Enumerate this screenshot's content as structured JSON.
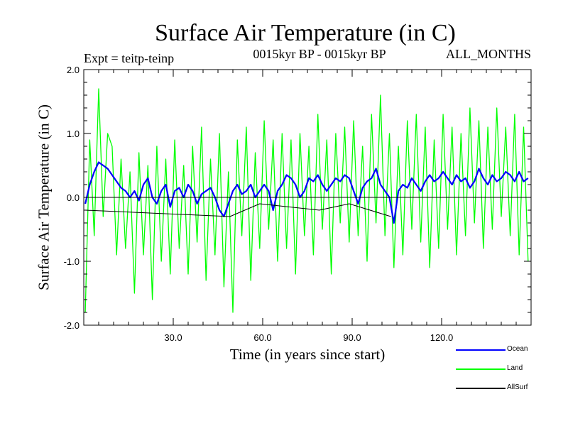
{
  "chart_data": {
    "type": "line",
    "title": "Surface Air Temperature (in C)",
    "subtitle_left": "Expt = teitp-teinp",
    "subtitle_center": "0015kyr BP - 0015kyr BP",
    "subtitle_right": "ALL_MONTHS",
    "xlabel": "Time (in years since start)",
    "ylabel": "Surface Air Temperature (in C)",
    "xlim": [
      0,
      150
    ],
    "ylim": [
      -2.0,
      2.0
    ],
    "x_ticks": [
      30,
      60,
      90,
      120
    ],
    "x_tick_labels": [
      "30.0",
      "60.0",
      "90.0",
      "120.0"
    ],
    "y_ticks": [
      -2.0,
      -1.0,
      0.0,
      1.0,
      2.0
    ],
    "y_tick_labels": [
      "-2.0",
      "-1.0",
      "0.0",
      "1.0",
      "2.0"
    ],
    "zero_line": 0.0,
    "legend_position": "bottom-right",
    "series": [
      {
        "name": "Land",
        "color": "#00ff00",
        "x": [
          0.5,
          2.0,
          3.5,
          5.0,
          6.5,
          8.0,
          9.5,
          11.0,
          12.5,
          14.0,
          15.5,
          17.0,
          18.5,
          20.0,
          21.5,
          23.0,
          24.5,
          26.0,
          27.5,
          29.0,
          30.5,
          32.0,
          33.5,
          35.0,
          36.5,
          38.0,
          39.5,
          41.0,
          42.5,
          44.0,
          45.5,
          47.0,
          48.5,
          50.0,
          51.5,
          53.0,
          54.5,
          56.0,
          57.5,
          59.0,
          60.5,
          62.0,
          63.5,
          65.0,
          66.5,
          68.0,
          69.5,
          71.0,
          72.5,
          74.0,
          75.5,
          77.0,
          78.5,
          80.0,
          81.5,
          83.0,
          84.5,
          86.0,
          87.5,
          89.0,
          90.5,
          92.0,
          93.5,
          95.0,
          96.5,
          98.0,
          99.5,
          101.0,
          102.5,
          104.0,
          105.5,
          107.0,
          108.5,
          110.0,
          111.5,
          113.0,
          114.5,
          116.0,
          117.5,
          119.0,
          120.5,
          122.0,
          123.5,
          125.0,
          126.5,
          128.0,
          129.5,
          131.0,
          132.5,
          134.0,
          135.5,
          137.0,
          138.5,
          140.0,
          141.5,
          143.0,
          144.5,
          146.0,
          147.5,
          149.0
        ],
        "values": [
          -1.8,
          0.9,
          -0.6,
          1.7,
          -0.3,
          1.0,
          0.8,
          -0.9,
          0.6,
          -0.8,
          0.4,
          -1.5,
          0.7,
          -0.9,
          0.5,
          -1.6,
          0.8,
          -1.0,
          0.6,
          -1.2,
          0.9,
          -0.8,
          0.5,
          -1.2,
          0.8,
          -0.7,
          1.1,
          -1.3,
          0.6,
          -0.9,
          1.0,
          -1.4,
          0.4,
          -1.8,
          0.9,
          -0.6,
          1.1,
          -1.3,
          0.7,
          -0.8,
          1.2,
          -0.5,
          0.9,
          -1.0,
          1.0,
          -0.8,
          0.9,
          -1.2,
          1.0,
          -0.6,
          0.8,
          -0.9,
          1.3,
          -0.5,
          0.9,
          -1.2,
          1.0,
          -0.4,
          1.1,
          -0.7,
          1.2,
          -0.6,
          0.8,
          -1.0,
          1.3,
          -0.4,
          1.6,
          -0.6,
          1.0,
          -1.1,
          0.8,
          -0.9,
          1.2,
          -0.5,
          1.3,
          -0.7,
          1.1,
          -1.1,
          0.9,
          -0.8,
          1.3,
          -0.5,
          1.1,
          -0.9,
          1.0,
          -0.6,
          1.4,
          -0.4,
          1.2,
          -0.8,
          1.1,
          -0.5,
          1.4,
          -0.3,
          1.1,
          -0.6,
          1.3,
          -0.9,
          1.1,
          -1.0
        ]
      },
      {
        "name": "Ocean",
        "color": "#0000ff",
        "x": [
          0.5,
          2.0,
          3.5,
          5.0,
          6.5,
          8.0,
          9.5,
          11.0,
          12.5,
          14.0,
          15.5,
          17.0,
          18.5,
          20.0,
          21.5,
          23.0,
          24.5,
          26.0,
          27.5,
          29.0,
          30.5,
          32.0,
          33.5,
          35.0,
          36.5,
          38.0,
          39.5,
          41.0,
          42.5,
          44.0,
          45.5,
          47.0,
          48.5,
          50.0,
          51.5,
          53.0,
          54.5,
          56.0,
          57.5,
          59.0,
          60.5,
          62.0,
          63.5,
          65.0,
          66.5,
          68.0,
          69.5,
          71.0,
          72.5,
          74.0,
          75.5,
          77.0,
          78.5,
          80.0,
          81.5,
          83.0,
          84.5,
          86.0,
          87.5,
          89.0,
          90.5,
          92.0,
          93.5,
          95.0,
          96.5,
          98.0,
          99.5,
          101.0,
          102.5,
          104.0,
          105.5,
          107.0,
          108.5,
          110.0,
          111.5,
          113.0,
          114.5,
          116.0,
          117.5,
          119.0,
          120.5,
          122.0,
          123.5,
          125.0,
          126.5,
          128.0,
          129.5,
          131.0,
          132.5,
          134.0,
          135.5,
          137.0,
          138.5,
          140.0,
          141.5,
          143.0,
          144.5,
          146.0,
          147.5,
          149.0
        ],
        "values": [
          -0.1,
          0.2,
          0.4,
          0.55,
          0.5,
          0.45,
          0.35,
          0.25,
          0.15,
          0.1,
          0.0,
          0.1,
          -0.05,
          0.2,
          0.3,
          0.0,
          -0.1,
          0.1,
          0.2,
          -0.15,
          0.1,
          0.15,
          0.0,
          0.2,
          0.1,
          -0.1,
          0.05,
          0.1,
          0.15,
          0.0,
          -0.2,
          -0.3,
          -0.1,
          0.1,
          0.2,
          0.05,
          0.1,
          0.2,
          0.0,
          0.1,
          0.2,
          0.1,
          -0.2,
          0.1,
          0.2,
          0.35,
          0.3,
          0.2,
          0.0,
          0.1,
          0.3,
          0.25,
          0.35,
          0.2,
          0.1,
          0.2,
          0.3,
          0.25,
          0.35,
          0.3,
          0.1,
          -0.1,
          0.15,
          0.25,
          0.3,
          0.45,
          0.2,
          0.1,
          0.0,
          -0.4,
          0.1,
          0.2,
          0.15,
          0.3,
          0.2,
          0.1,
          0.25,
          0.35,
          0.25,
          0.3,
          0.4,
          0.3,
          0.2,
          0.35,
          0.25,
          0.3,
          0.15,
          0.25,
          0.45,
          0.3,
          0.2,
          0.35,
          0.25,
          0.3,
          0.4,
          0.35,
          0.25,
          0.4,
          0.25,
          0.3
        ]
      },
      {
        "name": "AllSurf",
        "color": "#000000",
        "x": [
          0.5,
          49.0,
          59.0,
          79.0,
          89.0,
          103.0
        ],
        "values": [
          -0.2,
          -0.3,
          -0.1,
          -0.2,
          -0.1,
          -0.3
        ]
      }
    ]
  }
}
